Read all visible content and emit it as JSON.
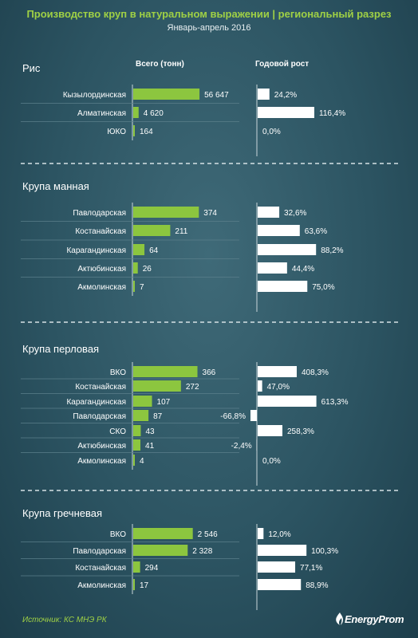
{
  "header": {
    "title": "Производство круп в натуральном выражении | региональный разрез",
    "subtitle": "Январь-апрель 2016"
  },
  "columns": {
    "total": "Всего (тонн)",
    "growth": "Годовой рост"
  },
  "footer": {
    "source": "Источник: КС МНЭ РК",
    "logo": "EnergyProm"
  },
  "colors": {
    "bar_total": "#8cc63f",
    "bar_growth": "#ffffff",
    "title": "#9fd045",
    "background": "#2c5462"
  },
  "chart_data": [
    {
      "type": "bar",
      "title": "Рис",
      "categories": [
        "Кызылординская",
        "Алматинская",
        "ЮКО"
      ],
      "series": [
        {
          "name": "Всего (тонн)",
          "values": [
            56647,
            4620,
            164
          ],
          "labels": [
            "56 647",
            "4 620",
            "164"
          ]
        },
        {
          "name": "Годовой рост",
          "values": [
            24.2,
            116.4,
            0.0
          ],
          "labels": [
            "24,2%",
            "116,4%",
            "0,0%"
          ]
        }
      ]
    },
    {
      "type": "bar",
      "title": "Крупа манная",
      "categories": [
        "Павлодарская",
        "Костанайская",
        "Карагандинская",
        "Актюбинская",
        "Акмолинская"
      ],
      "series": [
        {
          "name": "Всего (тонн)",
          "values": [
            374,
            211,
            64,
            26,
            7
          ],
          "labels": [
            "374",
            "211",
            "64",
            "26",
            "7"
          ]
        },
        {
          "name": "Годовой рост",
          "values": [
            32.6,
            63.6,
            88.2,
            44.4,
            75.0
          ],
          "labels": [
            "32,6%",
            "63,6%",
            "88,2%",
            "44,4%",
            "75,0%"
          ]
        }
      ]
    },
    {
      "type": "bar",
      "title": "Крупа перловая",
      "categories": [
        "ВКО",
        "Костанайская",
        "Карагандинская",
        "Павлодарская",
        "СКО",
        "Актюбинская",
        "Акмолинская"
      ],
      "series": [
        {
          "name": "Всего (тонн)",
          "values": [
            366,
            272,
            107,
            87,
            43,
            41,
            4
          ],
          "labels": [
            "366",
            "272",
            "107",
            "87",
            "43",
            "41",
            "4"
          ]
        },
        {
          "name": "Годовой рост",
          "values": [
            408.3,
            47.0,
            613.3,
            -66.8,
            258.3,
            -2.4,
            0.0
          ],
          "labels": [
            "408,3%",
            "47,0%",
            "613,3%",
            "-66,8%",
            "258,3%",
            "-2,4%",
            "0,0%"
          ]
        }
      ]
    },
    {
      "type": "bar",
      "title": "Крупа гречневая",
      "categories": [
        "ВКО",
        "Павлодарская",
        "Костанайская",
        "Акмолинская"
      ],
      "series": [
        {
          "name": "Всего (тонн)",
          "values": [
            2546,
            2328,
            294,
            17
          ],
          "labels": [
            "2 546",
            "2 328",
            "294",
            "17"
          ]
        },
        {
          "name": "Годовой рост",
          "values": [
            12.0,
            100.3,
            77.1,
            88.9
          ],
          "labels": [
            "12,0%",
            "100,3%",
            "77,1%",
            "88,9%"
          ]
        }
      ]
    }
  ]
}
